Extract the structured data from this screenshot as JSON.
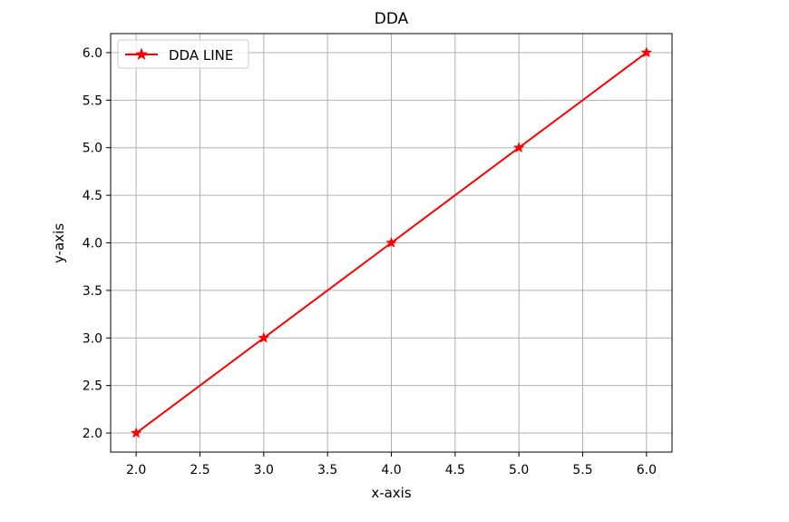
{
  "chart_data": {
    "type": "line",
    "title": "DDA",
    "xlabel": "x-axis",
    "ylabel": "y-axis",
    "xlim": [
      1.8,
      6.2
    ],
    "ylim": [
      1.8,
      6.2
    ],
    "xticks": [
      2.0,
      2.5,
      3.0,
      3.5,
      4.0,
      4.5,
      5.0,
      5.5,
      6.0
    ],
    "yticks": [
      2.0,
      2.5,
      3.0,
      3.5,
      4.0,
      4.5,
      5.0,
      5.5,
      6.0
    ],
    "xtick_labels": [
      "2.0",
      "2.5",
      "3.0",
      "3.5",
      "4.0",
      "4.5",
      "5.0",
      "5.5",
      "6.0"
    ],
    "ytick_labels": [
      "2.0",
      "2.5",
      "3.0",
      "3.5",
      "4.0",
      "4.5",
      "5.0",
      "5.5",
      "6.0"
    ],
    "grid": true,
    "legend_position": "upper-left",
    "series": [
      {
        "name": "DDA LINE",
        "color": "#ff0000",
        "marker": "star",
        "x": [
          2,
          3,
          4,
          5,
          6
        ],
        "y": [
          2,
          3,
          4,
          5,
          6
        ]
      }
    ]
  }
}
